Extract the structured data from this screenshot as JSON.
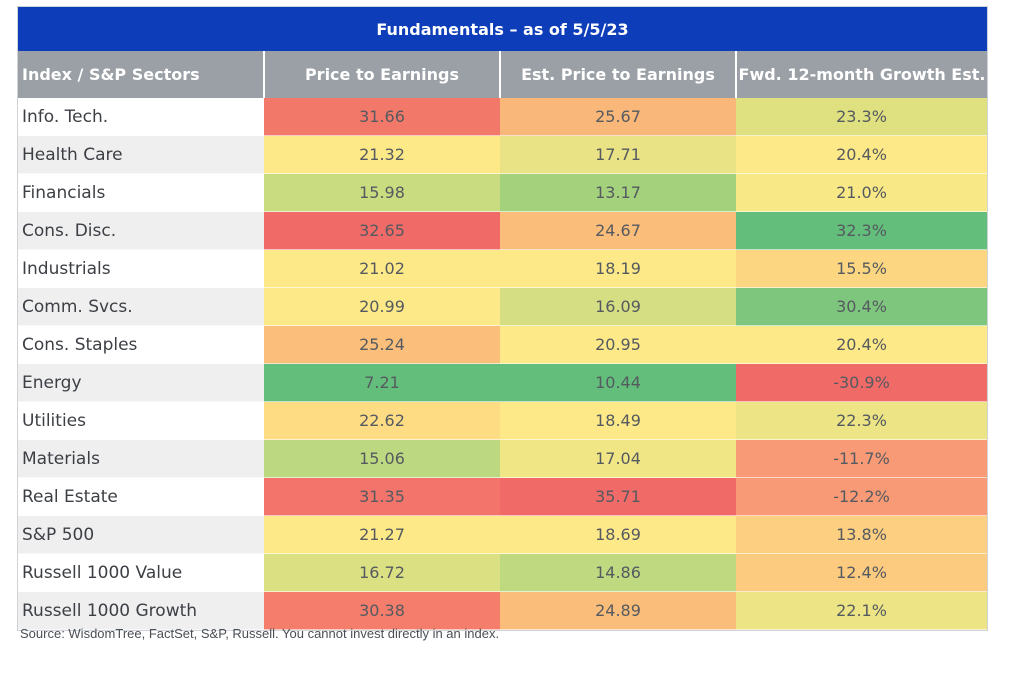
{
  "chart_data": {
    "type": "table",
    "title": "Fundamentals – as of 5/5/23",
    "columns": [
      "Index / S&P Sectors",
      "Price to Earnings",
      "Est. Price to Earnings",
      "Fwd. 12-month Growth Est."
    ],
    "rows": [
      {
        "label": "Info. Tech.",
        "values": [
          "31.66",
          "25.67",
          "23.3%"
        ],
        "colors": [
          "#f2796a",
          "#f9b779",
          "#dfe07f"
        ]
      },
      {
        "label": "Health Care",
        "values": [
          "21.32",
          "17.71",
          "20.4%"
        ],
        "colors": [
          "#fde987",
          "#e9e385",
          "#fde987"
        ]
      },
      {
        "label": "Financials",
        "values": [
          "15.98",
          "13.17",
          "21.0%"
        ],
        "colors": [
          "#c9dc80",
          "#a4d17c",
          "#f8e886"
        ]
      },
      {
        "label": "Cons. Disc.",
        "values": [
          "32.65",
          "24.67",
          "32.3%"
        ],
        "colors": [
          "#f06a67",
          "#fbbd7a",
          "#63be7b"
        ]
      },
      {
        "label": "Industrials",
        "values": [
          "21.02",
          "18.19",
          "15.5%"
        ],
        "colors": [
          "#fde987",
          "#fde987",
          "#fdd682"
        ]
      },
      {
        "label": "Comm. Svcs.",
        "values": [
          "20.99",
          "16.09",
          "30.4%"
        ],
        "colors": [
          "#fde987",
          "#d5de82",
          "#7ec67d"
        ]
      },
      {
        "label": "Cons. Staples",
        "values": [
          "25.24",
          "20.95",
          "20.4%"
        ],
        "colors": [
          "#fbbf7b",
          "#fde987",
          "#fde987"
        ]
      },
      {
        "label": "Energy",
        "values": [
          "7.21",
          "10.44",
          "-30.9%"
        ],
        "colors": [
          "#63be7b",
          "#63be7b",
          "#f06a67"
        ]
      },
      {
        "label": "Utilities",
        "values": [
          "22.62",
          "18.49",
          "22.3%"
        ],
        "colors": [
          "#fddc84",
          "#fde987",
          "#ece485"
        ]
      },
      {
        "label": "Materials",
        "values": [
          "15.06",
          "17.04",
          "-11.7%"
        ],
        "colors": [
          "#bcd880",
          "#f1e686",
          "#f89a75"
        ]
      },
      {
        "label": "Real Estate",
        "values": [
          "31.35",
          "35.71",
          "-12.2%"
        ],
        "colors": [
          "#f2746a",
          "#f06a67",
          "#f89a75"
        ]
      },
      {
        "label": "S&P 500",
        "values": [
          "21.27",
          "18.69",
          "13.8%"
        ],
        "colors": [
          "#fde987",
          "#fde987",
          "#fdcf80"
        ]
      },
      {
        "label": "Russell 1000 Value",
        "values": [
          "16.72",
          "14.86",
          "12.4%"
        ],
        "colors": [
          "#dbe082",
          "#bfd981",
          "#fdcb80"
        ]
      },
      {
        "label": "Russell 1000 Growth",
        "values": [
          "30.38",
          "24.89",
          "22.1%"
        ],
        "colors": [
          "#f47d6c",
          "#fbbd7a",
          "#ece485"
        ]
      }
    ]
  },
  "source": "Source: WisdomTree, FactSet, S&P, Russell. You cannot invest directly in an index."
}
